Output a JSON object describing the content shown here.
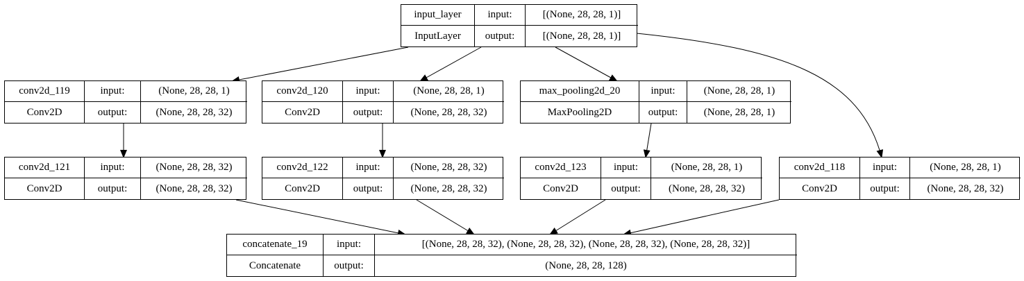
{
  "nodes": {
    "input_layer": {
      "name": "input_layer",
      "type": "InputLayer",
      "input_label": "input:",
      "output_label": "output:",
      "input": "[(None, 28, 28, 1)]",
      "output": "[(None, 28, 28, 1)]"
    },
    "conv2d_119": {
      "name": "conv2d_119",
      "type": "Conv2D",
      "input_label": "input:",
      "output_label": "output:",
      "input": "(None, 28, 28, 1)",
      "output": "(None, 28, 28, 32)"
    },
    "conv2d_120": {
      "name": "conv2d_120",
      "type": "Conv2D",
      "input_label": "input:",
      "output_label": "output:",
      "input": "(None, 28, 28, 1)",
      "output": "(None, 28, 28, 32)"
    },
    "max_pooling2d_20": {
      "name": "max_pooling2d_20",
      "type": "MaxPooling2D",
      "input_label": "input:",
      "output_label": "output:",
      "input": "(None, 28, 28, 1)",
      "output": "(None, 28, 28, 1)"
    },
    "conv2d_121": {
      "name": "conv2d_121",
      "type": "Conv2D",
      "input_label": "input:",
      "output_label": "output:",
      "input": "(None, 28, 28, 32)",
      "output": "(None, 28, 28, 32)"
    },
    "conv2d_122": {
      "name": "conv2d_122",
      "type": "Conv2D",
      "input_label": "input:",
      "output_label": "output:",
      "input": "(None, 28, 28, 32)",
      "output": "(None, 28, 28, 32)"
    },
    "conv2d_123": {
      "name": "conv2d_123",
      "type": "Conv2D",
      "input_label": "input:",
      "output_label": "output:",
      "input": "(None, 28, 28, 1)",
      "output": "(None, 28, 28, 32)"
    },
    "conv2d_118": {
      "name": "conv2d_118",
      "type": "Conv2D",
      "input_label": "input:",
      "output_label": "output:",
      "input": "(None, 28, 28, 1)",
      "output": "(None, 28, 28, 32)"
    },
    "concatenate_19": {
      "name": "concatenate_19",
      "type": "Concatenate",
      "input_label": "input:",
      "output_label": "output:",
      "input": "[(None, 28, 28, 32), (None, 28, 28, 32), (None, 28, 28, 32), (None, 28, 28, 32)]",
      "output": "(None, 28, 28, 128)"
    }
  },
  "edges": [
    {
      "from": "input_layer",
      "to": "conv2d_119"
    },
    {
      "from": "input_layer",
      "to": "conv2d_120"
    },
    {
      "from": "input_layer",
      "to": "max_pooling2d_20"
    },
    {
      "from": "input_layer",
      "to": "conv2d_118"
    },
    {
      "from": "conv2d_119",
      "to": "conv2d_121"
    },
    {
      "from": "conv2d_120",
      "to": "conv2d_122"
    },
    {
      "from": "max_pooling2d_20",
      "to": "conv2d_123"
    },
    {
      "from": "conv2d_121",
      "to": "concatenate_19"
    },
    {
      "from": "conv2d_122",
      "to": "concatenate_19"
    },
    {
      "from": "conv2d_123",
      "to": "concatenate_19"
    },
    {
      "from": "conv2d_118",
      "to": "concatenate_19"
    }
  ]
}
